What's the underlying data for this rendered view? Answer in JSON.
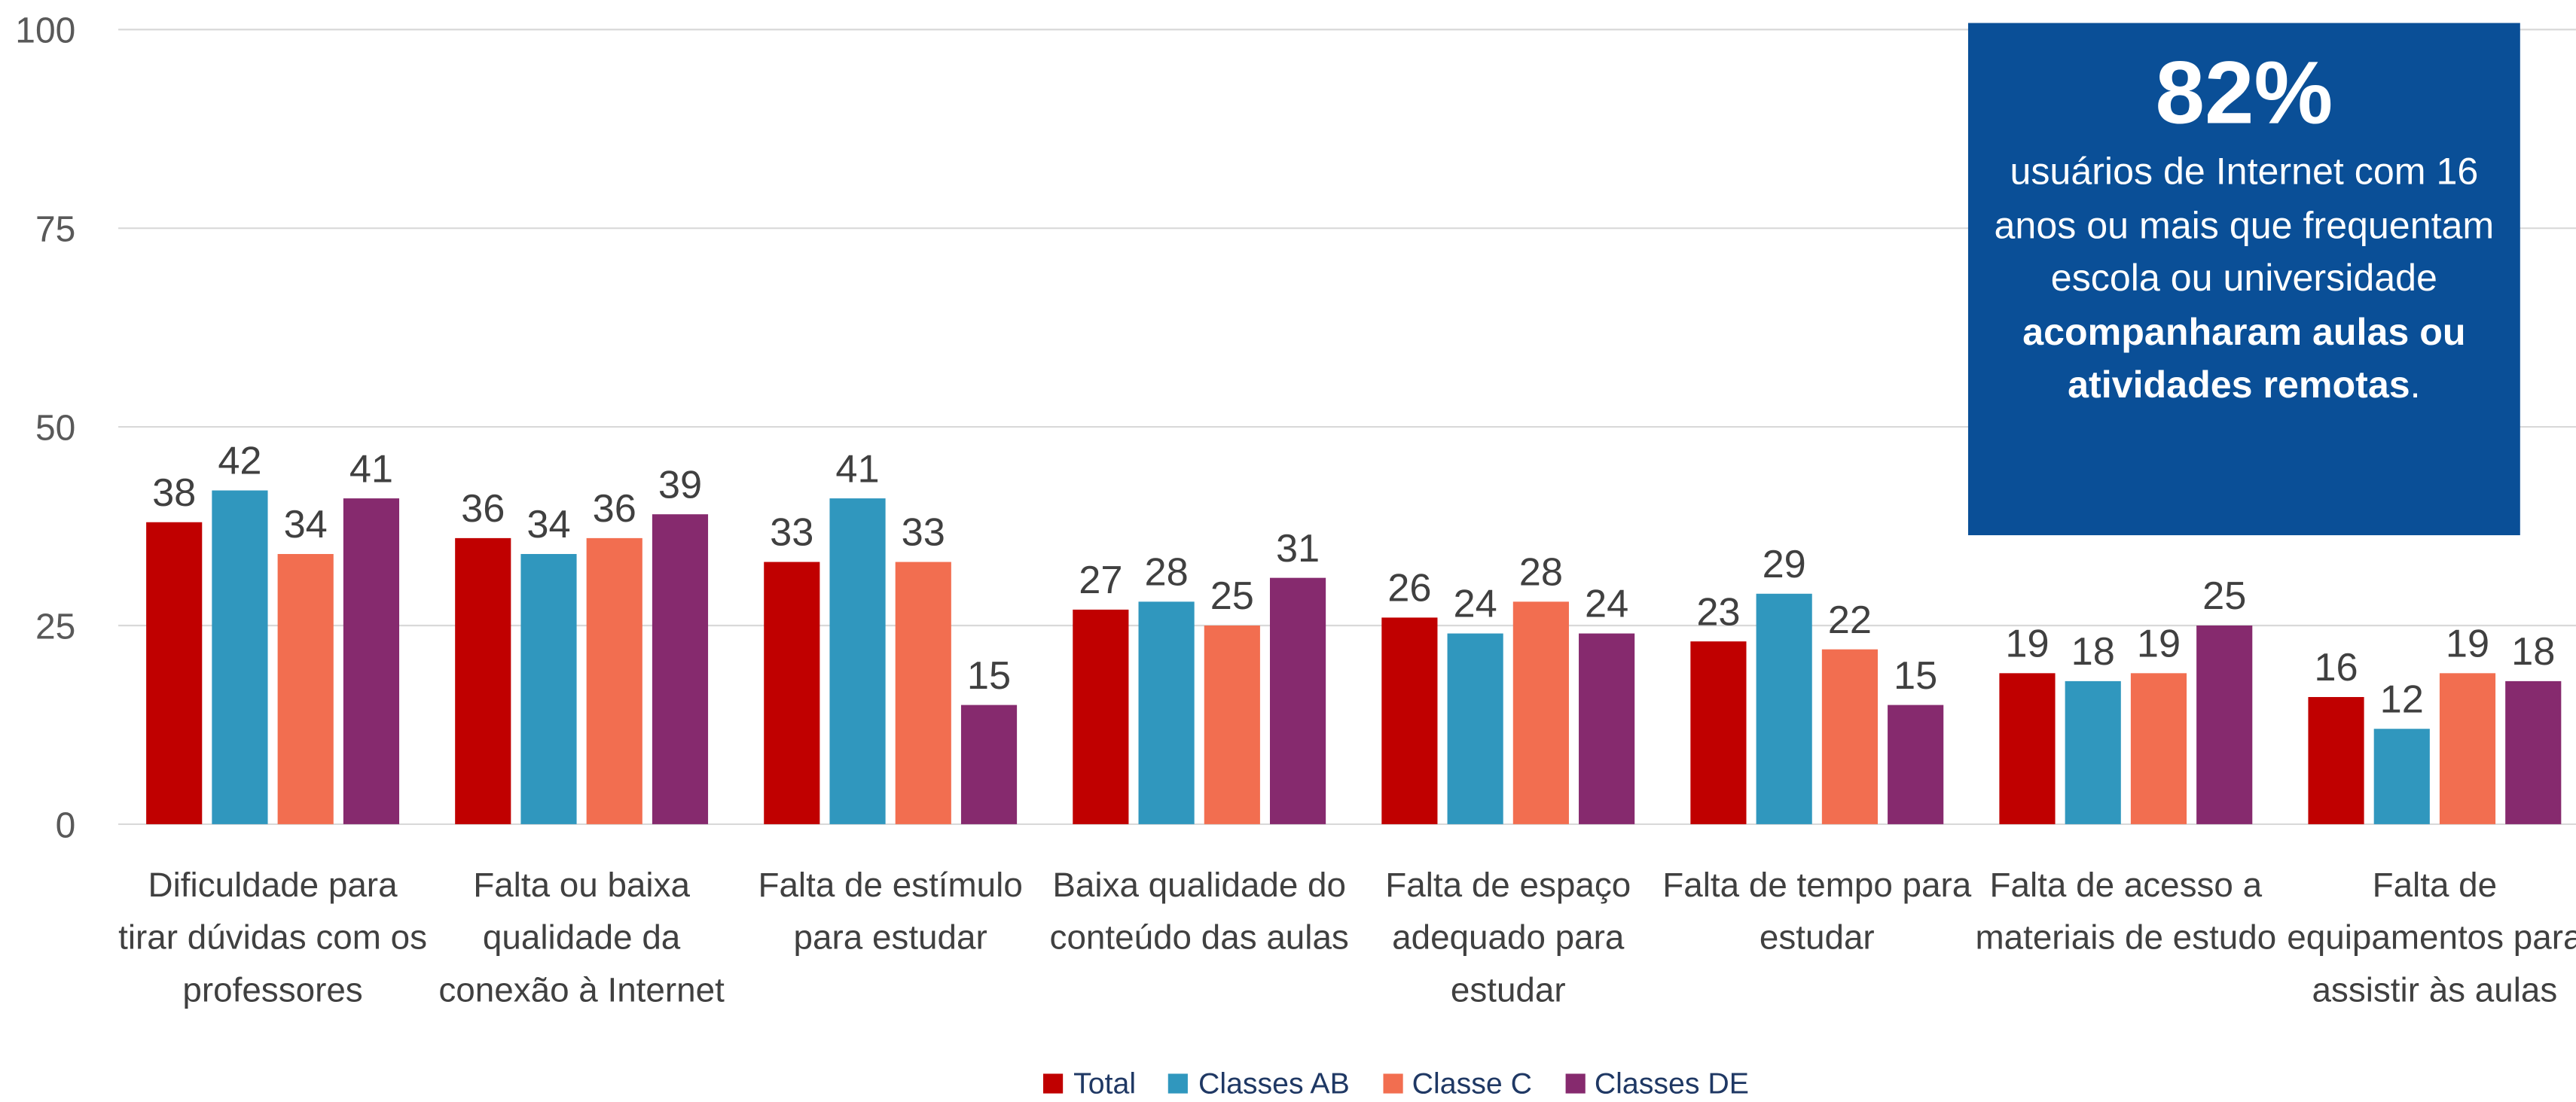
{
  "chart_data": {
    "type": "bar",
    "categories": [
      "Dificuldade para tirar dúvidas com os professores",
      "Falta ou baixa qualidade da conexão à Internet",
      "Falta de estímulo para estudar",
      "Baixa qualidade do conteúdo das aulas",
      "Falta de espaço adequado para estudar",
      "Falta de tempo para estudar",
      "Falta de acesso a materiais de estudo",
      "Falta de equipamentos para assistir às aulas"
    ],
    "series": [
      {
        "name": "Total",
        "color": "#c00000",
        "values": [
          38,
          36,
          33,
          27,
          26,
          23,
          19,
          16
        ]
      },
      {
        "name": "Classes AB",
        "color": "#3097be",
        "values": [
          42,
          34,
          41,
          28,
          24,
          29,
          18,
          12
        ]
      },
      {
        "name": "Classe C",
        "color": "#f26e50",
        "values": [
          34,
          36,
          33,
          25,
          28,
          22,
          19,
          19
        ]
      },
      {
        "name": "Classes DE",
        "color": "#862a6e",
        "values": [
          41,
          39,
          15,
          31,
          24,
          15,
          25,
          18
        ]
      }
    ],
    "ylim": [
      0,
      100
    ],
    "yticks": [
      0,
      25,
      50,
      75,
      100
    ],
    "grid": true,
    "legend": "bottom",
    "annotation": {
      "headline": "82%",
      "text": "usuários de Internet com 16 anos ou mais que frequentam escola ou universidade",
      "bold": "acompanharam aulas ou atividades remotas",
      "tail": "."
    }
  }
}
